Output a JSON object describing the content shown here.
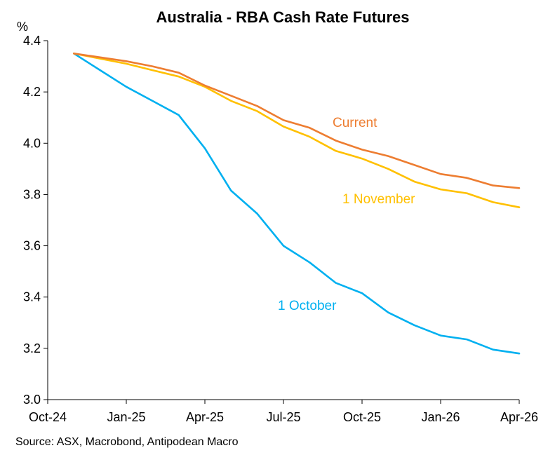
{
  "chart_data": {
    "type": "line",
    "title": "Australia - RBA Cash Rate Futures",
    "ylabel": "%",
    "ylim": [
      3.0,
      4.4
    ],
    "yticks": [
      "3.0",
      "3.2",
      "3.4",
      "3.6",
      "3.8",
      "4.0",
      "4.2",
      "4.4"
    ],
    "xticks": [
      "Oct-24",
      "Jan-25",
      "Apr-25",
      "Jul-25",
      "Oct-25",
      "Jan-26",
      "Apr-26"
    ],
    "x": [
      "Nov-24",
      "Dec-24",
      "Jan-25",
      "Feb-25",
      "Mar-25",
      "Apr-25",
      "May-25",
      "Jun-25",
      "Jul-25",
      "Aug-25",
      "Sep-25",
      "Oct-25",
      "Nov-25",
      "Dec-25",
      "Jan-26",
      "Feb-26",
      "Mar-26",
      "Apr-26"
    ],
    "series": [
      {
        "name": "Current",
        "color": "#ED7D31",
        "values": [
          4.35,
          4.335,
          4.32,
          4.3,
          4.275,
          4.225,
          4.185,
          4.145,
          4.09,
          4.06,
          4.01,
          3.975,
          3.95,
          3.915,
          3.88,
          3.865,
          3.835,
          3.825
        ]
      },
      {
        "name": "1 November",
        "color": "#FFC000",
        "values": [
          4.35,
          4.33,
          4.31,
          4.285,
          4.26,
          4.22,
          4.165,
          4.125,
          4.065,
          4.025,
          3.97,
          3.94,
          3.9,
          3.85,
          3.82,
          3.805,
          3.77,
          3.75
        ]
      },
      {
        "name": "1 October",
        "color": "#00B0F0",
        "values": [
          4.35,
          4.285,
          4.22,
          4.165,
          4.11,
          3.98,
          3.815,
          3.725,
          3.6,
          3.535,
          3.455,
          3.415,
          3.34,
          3.29,
          3.25,
          3.235,
          3.195,
          3.18
        ]
      }
    ],
    "source": "Source: ASX, Macrobond, Antipodean Macro"
  }
}
